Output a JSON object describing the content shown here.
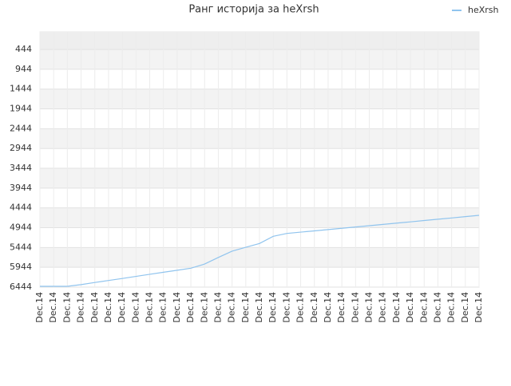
{
  "chart_data": {
    "type": "line",
    "title": "Ранг историја за heXrsh",
    "categories": [
      "Dec.14",
      "Dec.14",
      "Dec.14",
      "Dec.14",
      "Dec.14",
      "Dec.14",
      "Dec.14",
      "Dec.14",
      "Dec.14",
      "Dec.14",
      "Dec.14",
      "Dec.14",
      "Dec.14",
      "Dec.14",
      "Dec.14",
      "Dec.14",
      "Dec.14",
      "Dec.14",
      "Dec.14",
      "Dec.14",
      "Dec.14",
      "Dec.14",
      "Dec.14",
      "Dec.14",
      "Dec.14",
      "Dec.14",
      "Dec.14",
      "Dec.14",
      "Dec.14",
      "Dec.14",
      "Dec.14",
      "Dec.14",
      "Dec.14"
    ],
    "series": [
      {
        "name": "heXrsh",
        "color": "#90c4ee",
        "values": [
          6424,
          6424,
          6424,
          6381,
          6327,
          6277,
          6226,
          6174,
          6120,
          6069,
          6019,
          5967,
          5862,
          5695,
          5536,
          5439,
          5342,
          5161,
          5089,
          5056,
          5024,
          4991,
          4959,
          4926,
          4893,
          4861,
          4828,
          4796,
          4763,
          4730,
          4698,
          4665,
          4632
        ]
      }
    ],
    "ylim": [
      0,
      6444
    ],
    "y_inverted": true,
    "yticks": [
      444,
      944,
      1444,
      1944,
      2444,
      2944,
      3444,
      3944,
      4444,
      4944,
      5444,
      5944,
      6444
    ],
    "grid": true,
    "legend": "top-right"
  }
}
